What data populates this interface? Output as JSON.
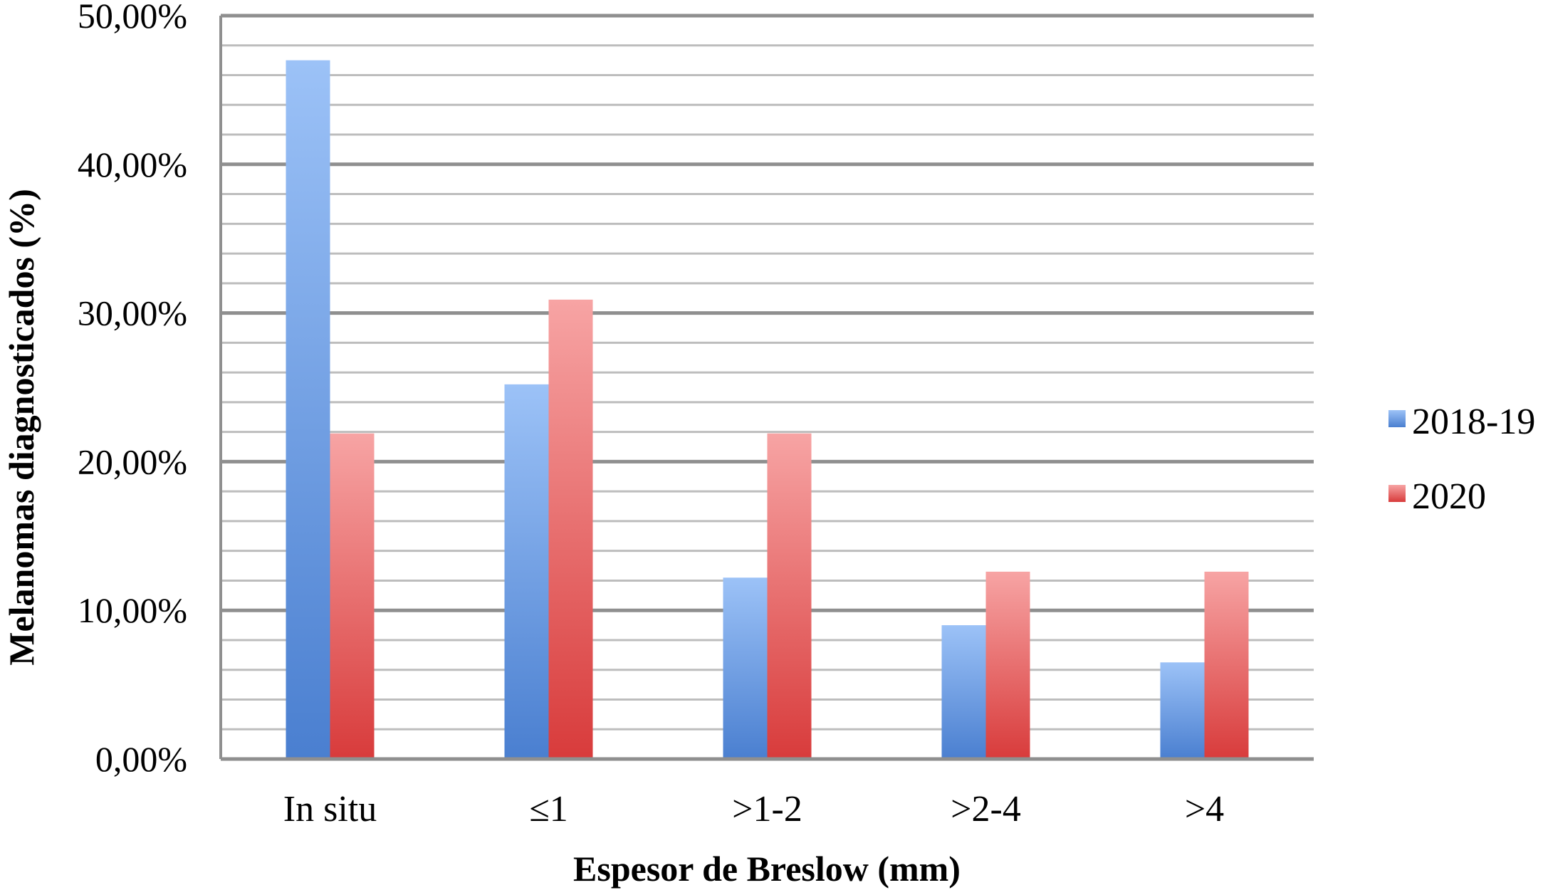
{
  "chart_data": {
    "type": "bar",
    "title": "",
    "xlabel": "Espesor de Breslow (mm)",
    "ylabel": "Melanomas diagnosticados (%)",
    "categories": [
      "In situ",
      "≤1",
      ">1-2",
      ">2-4",
      ">4"
    ],
    "series": [
      {
        "name": "2018-19",
        "values": [
          47.0,
          25.2,
          12.2,
          9.0,
          6.5
        ],
        "color": "#4a7fd0",
        "color_light": "#9cc2f7"
      },
      {
        "name": "2020",
        "values": [
          21.9,
          30.9,
          21.9,
          12.6,
          12.6
        ],
        "color": "#d83b3b",
        "color_light": "#f7a4a4"
      }
    ],
    "ylim": [
      0,
      50
    ],
    "yticks": [
      0,
      10,
      20,
      30,
      40,
      50
    ],
    "ytick_labels": [
      "0,00%",
      "10,00%",
      "20,00%",
      "30,00%",
      "40,00%",
      "50,00%"
    ],
    "minor_grid_step": 2,
    "grid": true,
    "legend_position": "right"
  }
}
